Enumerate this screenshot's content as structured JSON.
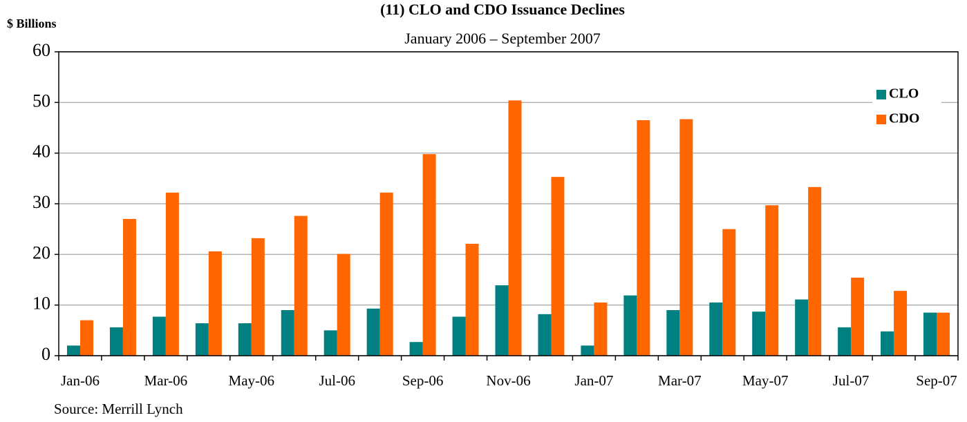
{
  "chart_data": {
    "type": "bar",
    "title": "(11) CLO and CDO Issuance Declines",
    "subtitle": "January 2006 – September 2007",
    "y_label": "$ Billions",
    "source": "Source: Merrill Lynch",
    "categories": [
      "Jan-06",
      null,
      "Mar-06",
      null,
      "May-06",
      null,
      "Jul-06",
      null,
      "Sep-06",
      null,
      "Nov-06",
      null,
      "Jan-07",
      null,
      "Mar-07",
      null,
      "May-07",
      null,
      "Jul-07",
      null,
      "Sep-07"
    ],
    "series": [
      {
        "name": "CLO",
        "color": "#008080",
        "values": [
          2.0,
          5.6,
          7.7,
          6.4,
          6.4,
          9.0,
          5.0,
          9.3,
          2.7,
          7.7,
          13.9,
          8.2,
          2.0,
          11.9,
          9.0,
          10.5,
          8.7,
          11.1,
          5.6,
          4.8,
          8.5
        ]
      },
      {
        "name": "CDO",
        "color": "#ff6600",
        "values": [
          7.0,
          27.0,
          32.2,
          20.6,
          23.2,
          27.6,
          20.1,
          32.2,
          39.8,
          22.1,
          50.4,
          35.3,
          10.5,
          46.5,
          46.7,
          25.0,
          29.7,
          33.3,
          15.4,
          12.8,
          8.5
        ]
      }
    ],
    "ylim": [
      0,
      60
    ],
    "yticks": [
      0,
      10,
      20,
      30,
      40,
      50,
      60
    ],
    "grid": true,
    "legend": "top-right"
  }
}
